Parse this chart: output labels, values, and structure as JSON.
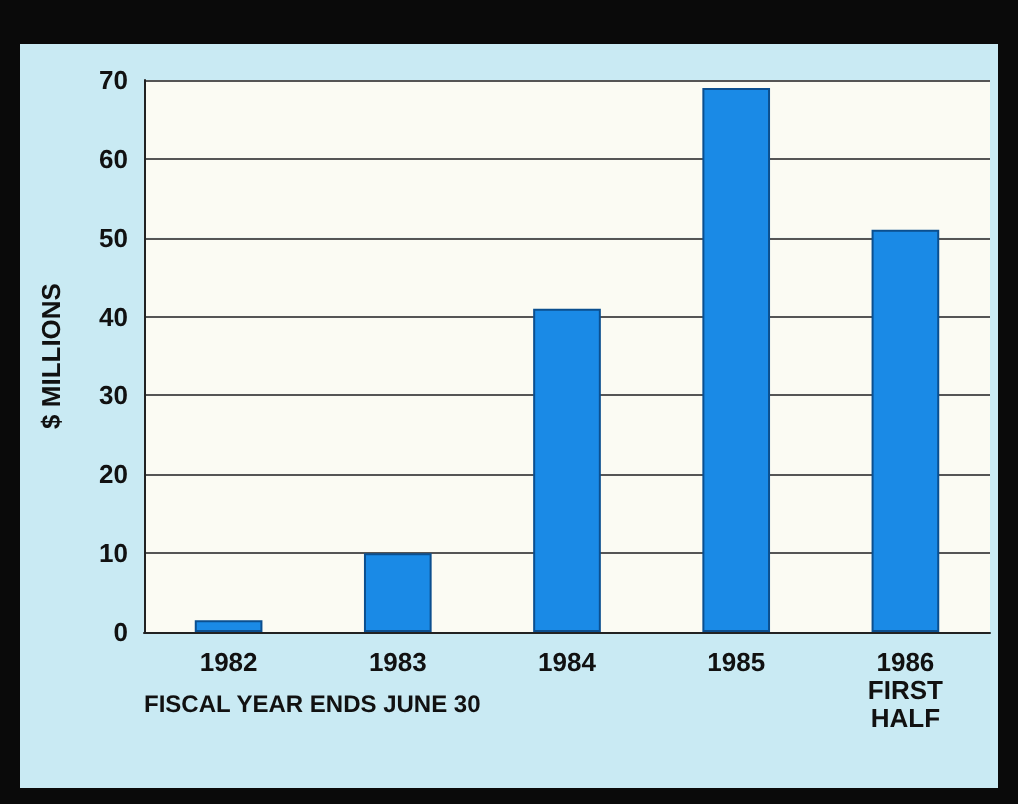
{
  "chart_data": {
    "type": "bar",
    "ylabel": "$ MILLIONS",
    "categories": [
      "1982",
      "1983",
      "1984",
      "1985",
      "1986\nFIRST\nHALF"
    ],
    "values": [
      1.5,
      10,
      41,
      69,
      51
    ],
    "color": "#1a8ae6",
    "ylim": [
      0,
      70
    ],
    "yticks": [
      0,
      10,
      20,
      30,
      40,
      50,
      60,
      70
    ],
    "grid": "y",
    "annotations": [
      "FISCAL YEAR ENDS JUNE 30"
    ]
  }
}
